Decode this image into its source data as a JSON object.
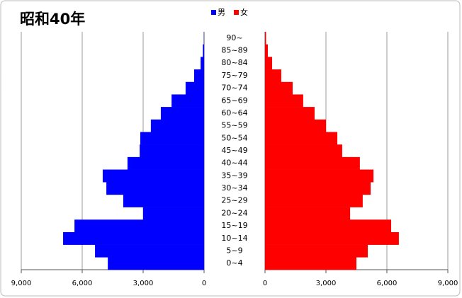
{
  "chart_data": {
    "type": "pyramid",
    "title": "昭和40年",
    "categories": [
      "0~4",
      "5~9",
      "10~14",
      "15~19",
      "20~24",
      "25~29",
      "30~34",
      "35~39",
      "40~44",
      "45~49",
      "50~54",
      "55~59",
      "60~64",
      "65~69",
      "70~74",
      "75~79",
      "80~84",
      "85~89",
      "90~"
    ],
    "series": [
      {
        "name": "男",
        "color": "#0000ff",
        "values": [
          4740,
          5370,
          6940,
          6380,
          3000,
          3980,
          4810,
          4990,
          3770,
          3170,
          3140,
          2620,
          2130,
          1600,
          910,
          490,
          170,
          60,
          10
        ]
      },
      {
        "name": "女",
        "color": "#ff0000",
        "values": [
          4500,
          5060,
          6590,
          6210,
          4190,
          4810,
          5200,
          5340,
          4670,
          3800,
          3560,
          3000,
          2440,
          1880,
          1360,
          800,
          350,
          140,
          50
        ]
      }
    ],
    "xlim": [
      0,
      9000
    ],
    "xticks": [
      0,
      {
        "value": 3000,
        "label": "3,000"
      },
      {
        "value": 6000,
        "label": "6,000"
      },
      {
        "value": 9000,
        "label": "9,000"
      }
    ],
    "grid": true
  }
}
